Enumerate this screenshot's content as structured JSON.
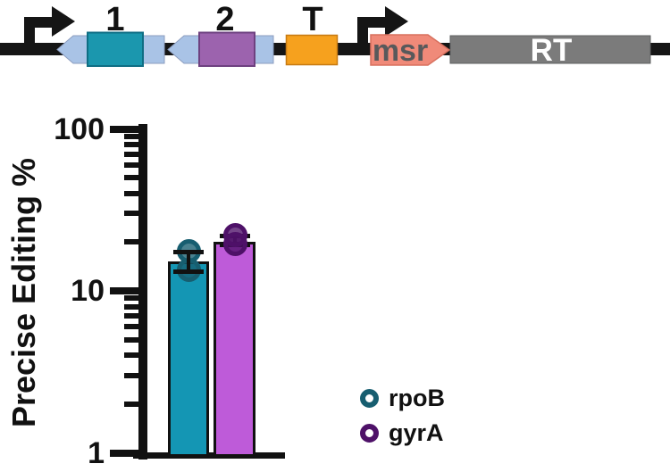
{
  "construct": {
    "labels": {
      "cargo1": "1",
      "cargo2": "2",
      "terminator": "T",
      "msr": "msr",
      "rt": "RT"
    },
    "colors": {
      "backbone": "#151515",
      "promoter": "#151515",
      "cargo_arrow": "#A9C3E6",
      "cargo1_box": "#1B97AE",
      "cargo2_box": "#9C63AE",
      "terminator_box": "#F6A11E",
      "msr_arrow": "#F08A79",
      "rt_box": "#7B7B7B",
      "msr_text": "#58595B",
      "rt_text": "#FFFFFF"
    }
  },
  "chart_data": {
    "type": "bar",
    "title": "",
    "xlabel": "",
    "ylabel": "Precise Editing %",
    "yscale": "log",
    "ylim": [
      1,
      100
    ],
    "grid": false,
    "legend_position": "lower right",
    "yticks": [
      {
        "value": 100,
        "label": "100"
      },
      {
        "value": 10,
        "label": "10"
      },
      {
        "value": 1,
        "label": "1"
      }
    ],
    "minor_ticks": [
      90,
      80,
      70,
      60,
      50,
      40,
      30,
      20,
      9,
      8,
      7,
      6,
      5,
      4,
      3,
      2
    ],
    "categories": [
      "rpoB",
      "gyrA"
    ],
    "series": [
      {
        "name": "rpoB",
        "bar_value": 15.2,
        "points": [
          17.5,
          13.4
        ],
        "error_range": [
          13.2,
          17.3
        ],
        "bar_color": "#1496B4",
        "point_color": "#175E70"
      },
      {
        "name": "gyrA",
        "bar_value": 20.1,
        "points": [
          22.0,
          19.5
        ],
        "error_range": [
          19.3,
          21.8
        ],
        "bar_color": "#BE5BD9",
        "point_color": "#4E1168"
      }
    ],
    "legend": [
      {
        "label": "rpoB",
        "color": "#175E70"
      },
      {
        "label": "gyrA",
        "color": "#4E1168"
      }
    ]
  }
}
